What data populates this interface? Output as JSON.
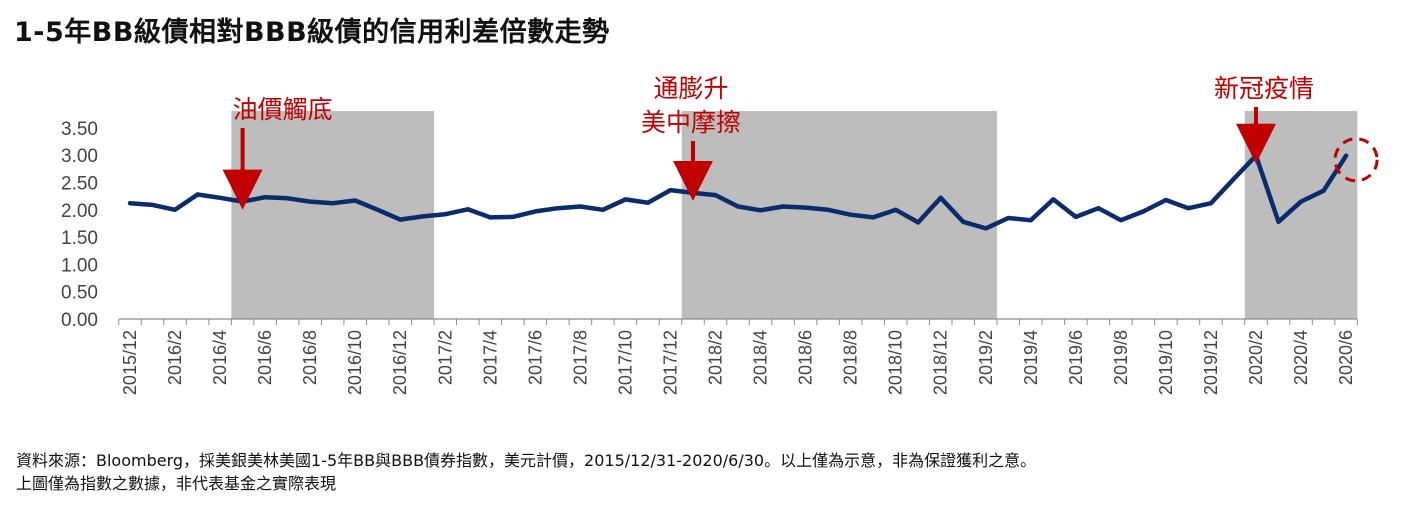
{
  "title": "1-5年BB級債相對BBB級債的信用利差倍數走勢",
  "source_lines": [
    "資料來源：Bloomberg，採美銀美林美國1-5年BB與BBB債券指數，美元計價，2015/12/31-2020/6/30。以上僅為示意，非為保證獲利之意。",
    "上圖僅為指數之數據，非代表基金之實際表現"
  ],
  "colors": {
    "line": "#0b2c6b",
    "shade": "#bdbdbd",
    "annotation": "#c00000",
    "axis": "#8c8c8c"
  },
  "chart_data": {
    "type": "line",
    "categories": [
      "2015/12",
      "2016/1",
      "2016/2",
      "2016/3",
      "2016/4",
      "2016/5",
      "2016/6",
      "2016/7",
      "2016/8",
      "2016/9",
      "2016/10",
      "2016/11",
      "2016/12",
      "2017/1",
      "2017/2",
      "2017/3",
      "2017/4",
      "2017/5",
      "2017/6",
      "2017/7",
      "2017/8",
      "2017/9",
      "2017/10",
      "2017/11",
      "2017/12",
      "2018/1",
      "2018/2",
      "2018/3",
      "2018/4",
      "2018/5",
      "2018/6",
      "2018/7",
      "2018/8",
      "2018/9",
      "2018/10",
      "2018/11",
      "2018/12",
      "2019/1",
      "2019/2",
      "2019/3",
      "2019/4",
      "2019/5",
      "2019/6",
      "2019/7",
      "2019/8",
      "2019/9",
      "2019/10",
      "2019/11",
      "2019/12",
      "2020/1",
      "2020/2",
      "2020/3",
      "2020/4",
      "2020/5",
      "2020/6"
    ],
    "x_tick_labels": [
      "2015/12",
      "2016/2",
      "2016/4",
      "2016/6",
      "2016/8",
      "2016/10",
      "2016/12",
      "2017/2",
      "2017/4",
      "2017/6",
      "2017/8",
      "2017/10",
      "2017/12",
      "2018/2",
      "2018/4",
      "2018/6",
      "2018/8",
      "2018/10",
      "2018/12",
      "2019/2",
      "2019/4",
      "2019/6",
      "2019/8",
      "2019/10",
      "2019/12",
      "2020/2",
      "2020/4",
      "2020/6"
    ],
    "values": [
      2.12,
      2.09,
      2.0,
      2.28,
      2.22,
      2.15,
      2.23,
      2.21,
      2.15,
      2.12,
      2.17,
      2.0,
      1.82,
      1.88,
      1.92,
      2.01,
      1.86,
      1.87,
      1.97,
      2.03,
      2.06,
      2.0,
      2.19,
      2.13,
      2.36,
      2.31,
      2.27,
      2.06,
      1.99,
      2.06,
      2.04,
      2.0,
      1.91,
      1.86,
      2.0,
      1.77,
      2.22,
      1.78,
      1.66,
      1.85,
      1.81,
      2.19,
      1.87,
      2.03,
      1.81,
      1.97,
      2.18,
      2.03,
      2.12,
      2.56,
      2.99,
      1.78,
      2.15,
      2.35,
      2.99
    ],
    "ylim": [
      0,
      3.5
    ],
    "y_ticks": [
      "0.00",
      "0.50",
      "1.00",
      "1.50",
      "2.00",
      "2.50",
      "3.00",
      "3.50"
    ],
    "shaded_periods": [
      {
        "start": "2016/5",
        "end": "2017/1"
      },
      {
        "start": "2018/1",
        "end": "2019/2"
      },
      {
        "start": "2020/2",
        "end": "2020/6"
      }
    ],
    "annotations": [
      {
        "lines": [
          "油價觸底"
        ],
        "at": "2016/5"
      },
      {
        "lines": [
          "通膨升",
          "美中摩擦"
        ],
        "at": "2018/1"
      },
      {
        "lines": [
          "新冠疫情"
        ],
        "at": "2020/2"
      }
    ],
    "highlight_circle_at": "2020/6",
    "grid": false,
    "legend": "none"
  }
}
